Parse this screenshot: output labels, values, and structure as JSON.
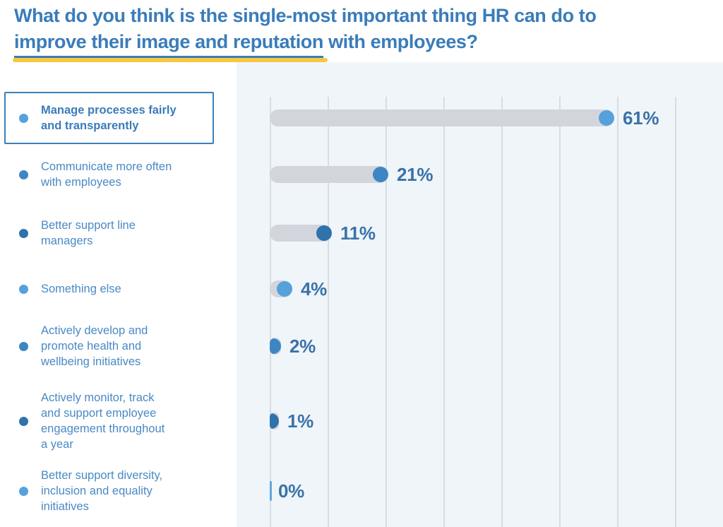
{
  "title": {
    "line1": "What do you think is the single-most important thing HR can do to",
    "highlight": "improve their image and reputation",
    "line2_rest": " with employees?"
  },
  "colors": {
    "title_blue": "#3A7CBA",
    "underline_yellow": "#F8C843",
    "legend_label_blue": "#4A89C4",
    "value_label_blue": "#3A72A8",
    "highlight_box_border": "#3D7FB8",
    "panel_background": "#F0F5F9",
    "gridline_gray": "#D8DDE3",
    "track_gray": "#D2D5DB",
    "zero_tick_blue": "#61A7DE",
    "dot_light": "#55A1DB",
    "dot_medium": "#3D86C4",
    "dot_dark": "#2F72AC"
  },
  "rows": [
    {
      "label": "Manage processes fairly\nand transparently",
      "value": 61,
      "value_label": "61%",
      "dot_color": "#55A1DB",
      "emphasized": true
    },
    {
      "label": "Communicate more often\nwith employees",
      "value": 21,
      "value_label": "21%",
      "dot_color": "#3D86C4",
      "emphasized": false
    },
    {
      "label": "Better support line\nmanagers",
      "value": 11,
      "value_label": "11%",
      "dot_color": "#2F72AC",
      "emphasized": false
    },
    {
      "label": "Something else",
      "value": 4,
      "value_label": "4%",
      "dot_color": "#55A1DB",
      "emphasized": false
    },
    {
      "label": "Actively develop and\npromote health and\nwellbeing initiatives",
      "value": 2,
      "value_label": "2%",
      "dot_color": "#3D86C4",
      "emphasized": false
    },
    {
      "label": "Actively monitor, track\nand support employee\nengagement throughout\na year",
      "value": 1,
      "value_label": "1%",
      "dot_color": "#2F72AC",
      "emphasized": false
    },
    {
      "label": "Better support diversity,\ninclusion and equality\ninitiatives",
      "value": 0,
      "value_label": "0%",
      "dot_color": "#55A1DB",
      "emphasized": false
    }
  ],
  "chart_data": {
    "type": "bar",
    "orientation": "horizontal",
    "title": "What do you think is the single-most important thing HR can do to improve their image and reputation with employees?",
    "categories": [
      "Manage processes fairly and transparently",
      "Communicate more often with employees",
      "Better support line managers",
      "Something else",
      "Actively develop and promote health and wellbeing initiatives",
      "Actively monitor, track and support employee engagement throughout a year",
      "Better support diversity, inclusion and equality initiatives"
    ],
    "values": [
      61,
      21,
      11,
      4,
      2,
      1,
      0
    ],
    "value_labels": [
      "61%",
      "21%",
      "11%",
      "4%",
      "2%",
      "1%",
      "0%"
    ],
    "unit": "%",
    "xlim": [
      0,
      80
    ],
    "gridline_step": 10,
    "grid": "vertical",
    "legend_position": "left",
    "highlighted_category": "Manage processes fairly and transparently",
    "style": "lollipop bars: gray track with colored end dot, dot colors cycle light/medium/dark blue"
  }
}
